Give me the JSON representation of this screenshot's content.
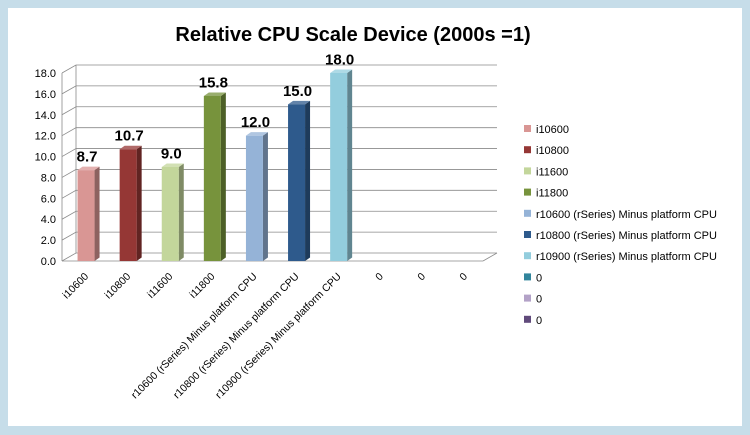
{
  "chart_data": {
    "type": "bar",
    "style": "3d-column",
    "title": "Relative CPU Scale Device (2000s =1)",
    "xlabel": "",
    "ylabel": "",
    "ylim": [
      0,
      18
    ],
    "ytick_step": 2,
    "ytick_labels": [
      "0.0",
      "2.0",
      "4.0",
      "6.0",
      "8.0",
      "10.0",
      "12.0",
      "14.0",
      "16.0",
      "18.0"
    ],
    "grid": true,
    "legend_position": "right",
    "categories": [
      "i10600",
      "i10800",
      "i11600",
      "i11800",
      "r10600 (rSeries) Minus platform CPU",
      "r10800 (rSeries) Minus platform CPU",
      "r10900 (rSeries) Minus platform CPU",
      "0",
      "0",
      "0"
    ],
    "values": [
      8.7,
      10.7,
      9.0,
      15.8,
      12.0,
      15.0,
      18.0,
      null,
      null,
      null
    ],
    "data_labels": [
      "8.7",
      "10.7",
      "9.0",
      "15.8",
      "12.0",
      "15.0",
      "18.0",
      "",
      "",
      ""
    ],
    "colors": [
      "#d99694",
      "#953735",
      "#c3d69b",
      "#77933c",
      "#95b3d7",
      "#2e5a8c",
      "#93cddd",
      "#31859c",
      "#b3a2c7",
      "#604a7b"
    ],
    "legend": [
      {
        "label": "i10600",
        "color": "#d99694"
      },
      {
        "label": "i10800",
        "color": "#953735"
      },
      {
        "label": "i11600",
        "color": "#c3d69b"
      },
      {
        "label": "i11800",
        "color": "#77933c"
      },
      {
        "label": "r10600 (rSeries) Minus platform CPU",
        "color": "#95b3d7"
      },
      {
        "label": "r10800 (rSeries) Minus platform CPU",
        "color": "#2e5a8c"
      },
      {
        "label": "r10900 (rSeries) Minus platform CPU",
        "color": "#93cddd"
      },
      {
        "label": "0",
        "color": "#31859c"
      },
      {
        "label": "0",
        "color": "#b3a2c7"
      },
      {
        "label": "0",
        "color": "#604a7b"
      }
    ]
  }
}
